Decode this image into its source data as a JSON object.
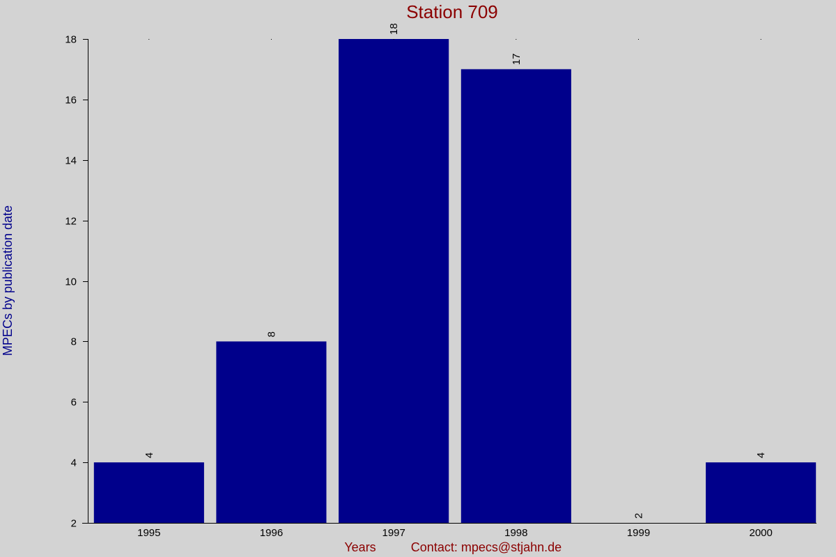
{
  "chart_data": {
    "type": "bar",
    "title": "Station 709",
    "xlabel": "Years",
    "ylabel": "MPECs by publication date",
    "footer": "Contact: mpecs@stjahn.de",
    "categories": [
      "1995",
      "1996",
      "1997",
      "1998",
      "1999",
      "2000"
    ],
    "values": [
      4,
      8,
      18,
      17,
      2,
      4
    ],
    "data_labels": [
      "4",
      "8",
      "18",
      "17",
      "2",
      "4"
    ],
    "ylim": [
      2,
      18
    ],
    "yticks": [
      2,
      4,
      6,
      8,
      10,
      12,
      14,
      16,
      18
    ],
    "ytick_labels": [
      "2",
      "4",
      "6",
      "8",
      "10",
      "12",
      "14",
      "16",
      "18"
    ],
    "grid": false,
    "legend": "none",
    "colors": {
      "bar": "#00008b",
      "background": "#d3d3d3",
      "title": "#8b0000",
      "xlabel": "#8b0000",
      "ylabel": "#00008b"
    }
  }
}
